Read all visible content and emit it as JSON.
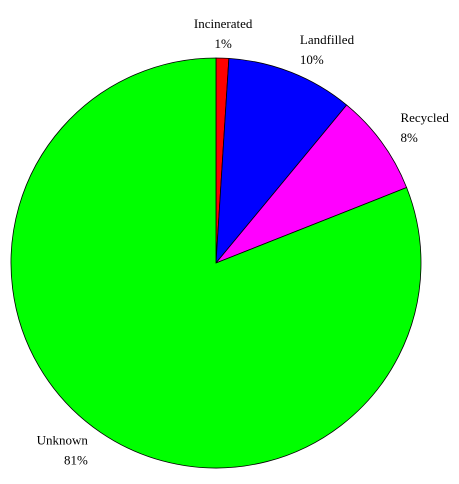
{
  "chart_data": {
    "type": "pie",
    "categories": [
      "Incinerated",
      "Landfilled",
      "Recycled",
      "Unknown"
    ],
    "values": [
      1,
      10,
      8,
      81
    ],
    "value_labels": [
      "1%",
      "10%",
      "8%",
      "81%"
    ],
    "colors": [
      "#ff0000",
      "#0000ff",
      "#ff00ff",
      "#00ff00"
    ]
  }
}
